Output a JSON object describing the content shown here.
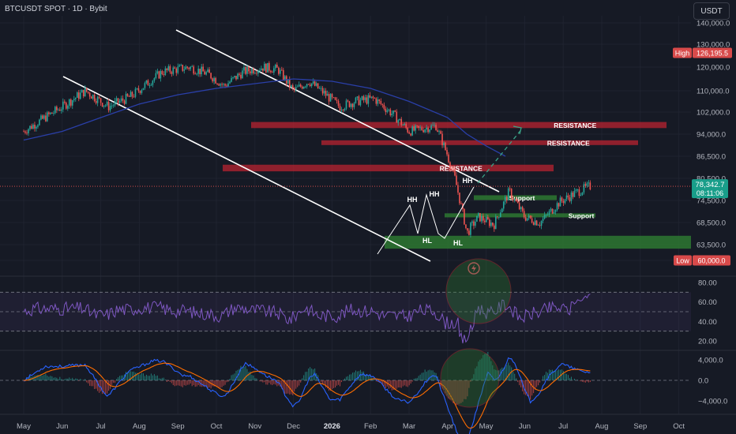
{
  "header": {
    "symbol": "BTCUSDT SPOT · 1D · Bybit",
    "currency": "USDT"
  },
  "colors": {
    "up": "#26a69a",
    "down": "#ef5350",
    "ma": "#2a3fa8",
    "rsi": "#7e57c2",
    "macd": "#2962ff",
    "signal": "#ff6d00",
    "resistance": "#b2222f",
    "support": "#2e7d32",
    "background": "#161a25"
  },
  "chart_data": {
    "type": "candlestick",
    "symbol": "BTCUSDT SPOT",
    "timeframe": "1D",
    "exchange": "Bybit",
    "price_axis": {
      "ticks": [
        "140,000.0",
        "130,000.0",
        "120,000.0",
        "110,000.0",
        "102,000.0",
        "94,000.0",
        "86,500.0",
        "80,500.0",
        "74,500.0",
        "68,500.0",
        "63,500.0",
        "60,000.0"
      ]
    },
    "time_axis": {
      "ticks": [
        "May",
        "Jun",
        "Jul",
        "Aug",
        "Sep",
        "Oct",
        "Nov",
        "Dec",
        "2026",
        "Feb",
        "Mar",
        "Apr",
        "May",
        "Jun",
        "Jul",
        "Aug",
        "Sep",
        "Oct"
      ]
    },
    "badges": {
      "high_label": "High",
      "high": "126,195.5",
      "low_label": "Low",
      "low": "60,000.0",
      "last_price": "78,342.7",
      "countdown": "08:11:06"
    },
    "price_path": [
      [
        0,
        95000
      ],
      [
        1,
        104000
      ],
      [
        1.6,
        110000
      ],
      [
        2.2,
        104000
      ],
      [
        2.8,
        108000
      ],
      [
        3.6,
        118000
      ],
      [
        4.3,
        120000
      ],
      [
        4.8,
        117000
      ],
      [
        5.2,
        112000
      ],
      [
        5.7,
        118000
      ],
      [
        6.2,
        120000
      ],
      [
        6.6,
        119000
      ],
      [
        7.0,
        110000
      ],
      [
        7.4,
        114000
      ],
      [
        7.8,
        109000
      ],
      [
        8.2,
        104000
      ],
      [
        8.6,
        106000
      ],
      [
        9.1,
        107000
      ],
      [
        9.6,
        101000
      ],
      [
        10,
        95000
      ],
      [
        10.7,
        97000
      ],
      [
        11.2,
        80000
      ],
      [
        11.5,
        66000
      ],
      [
        11.8,
        70000
      ],
      [
        12.2,
        68000
      ],
      [
        12.6,
        77000
      ],
      [
        13.0,
        70000
      ],
      [
        13.4,
        68500
      ],
      [
        13.9,
        74000
      ],
      [
        14.4,
        77000
      ],
      [
        14.7,
        78342
      ]
    ],
    "moving_average": [
      [
        0,
        92000
      ],
      [
        1,
        95000
      ],
      [
        2,
        100000
      ],
      [
        3,
        105000
      ],
      [
        4,
        108500
      ],
      [
        5,
        111000
      ],
      [
        6,
        113000
      ],
      [
        7,
        115000
      ],
      [
        8,
        114000
      ],
      [
        9,
        111000
      ],
      [
        10,
        106000
      ],
      [
        11,
        100000
      ],
      [
        11.5,
        94000
      ],
      [
        12,
        90000
      ],
      [
        12.5,
        86500
      ]
    ],
    "annotations": {
      "resistance": [
        {
          "label": "RESISTANCE",
          "low": 96200,
          "high": 98400
        },
        {
          "label": "RESISTANCE",
          "low": 90300,
          "high": 91900
        },
        {
          "label": "RESISTANCE",
          "low": 82400,
          "high": 84200
        }
      ],
      "support": [
        {
          "label": "Support",
          "low": 74600,
          "high": 75900
        },
        {
          "label": "Support",
          "low": 69900,
          "high": 71000
        },
        {
          "label": "",
          "low": 62600,
          "high": 65500
        }
      ],
      "pivots": [
        "HH",
        "HH",
        "HH",
        "HL",
        "HL"
      ]
    },
    "rsi": {
      "axis_ticks": [
        "80.00",
        "60.00",
        "40.00",
        "20.00"
      ],
      "overbought": 70,
      "midline": 50,
      "oversold": 30,
      "last": 66
    },
    "macd": {
      "axis_ticks": [
        "4,000.0",
        "0.0",
        "−4,000.0"
      ]
    }
  }
}
